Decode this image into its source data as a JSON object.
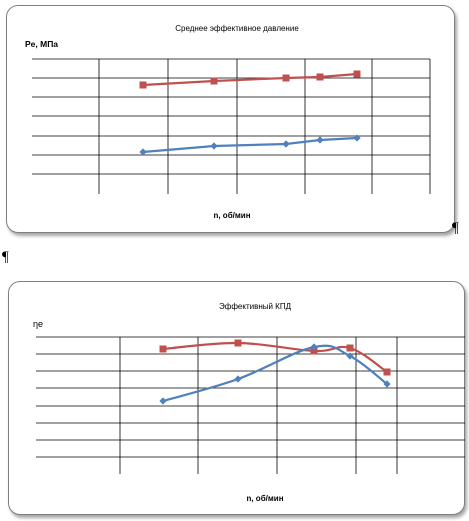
{
  "pilcrow": "¶",
  "chart_data": [
    {
      "type": "line",
      "title": "Среднее эффективное давление",
      "ylabel": "Pe, МПа",
      "xlabel": "n, об/мин",
      "grid": true,
      "legend": "none",
      "series": [
        {
          "color": "#c0504d",
          "marker": "square",
          "points": [
            [
              1,
              85
            ],
            [
              2,
              81
            ],
            [
              3,
              78
            ],
            [
              4,
              77
            ],
            [
              5,
              74
            ]
          ]
        },
        {
          "color": "#4f81bd",
          "marker": "diamond",
          "points": [
            [
              1,
              152
            ],
            [
              2,
              146
            ],
            [
              3,
              144
            ],
            [
              4,
              140
            ],
            [
              5,
              138
            ]
          ]
        }
      ]
    },
    {
      "type": "line",
      "title": "Эффективный  КПД",
      "ylabel": "ηe",
      "xlabel": "n, об/мин",
      "grid": true,
      "legend": "none",
      "series": [
        {
          "color": "#c0504d",
          "marker": "square",
          "smooth": true,
          "points": [
            [
              1,
              349
            ],
            [
              2,
              343
            ],
            [
              3,
              351
            ],
            [
              4,
              348
            ],
            [
              5,
              372
            ]
          ]
        },
        {
          "color": "#4f81bd",
          "marker": "diamond",
          "smooth": true,
          "points": [
            [
              1,
              401
            ],
            [
              2,
              379
            ],
            [
              3,
              347
            ],
            [
              4,
              356
            ],
            [
              5,
              384
            ]
          ]
        }
      ]
    }
  ]
}
